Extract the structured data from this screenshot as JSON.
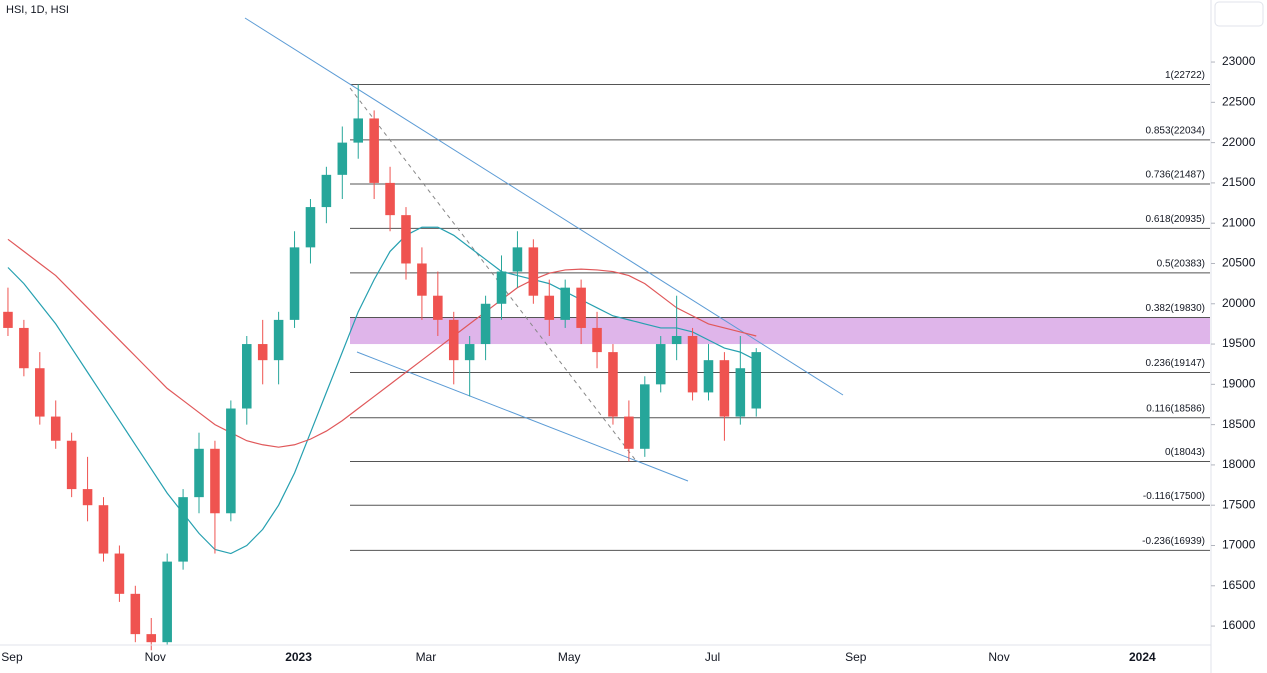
{
  "chart_data": {
    "type": "candlestick",
    "title": "HSI, 1D, HSI",
    "categories": [
      "Sep",
      null,
      null,
      null,
      null,
      null,
      null,
      null,
      null,
      "Nov",
      null,
      null,
      null,
      null,
      null,
      null,
      null,
      null,
      "2023",
      null,
      null,
      null,
      null,
      null,
      null,
      null,
      "Mar",
      null,
      null,
      null,
      null,
      null,
      null,
      null,
      null,
      "May",
      null,
      null,
      null,
      null,
      null,
      null,
      null,
      null,
      "Jul",
      null,
      null,
      null,
      null,
      null,
      null,
      null,
      null,
      "Sep",
      null,
      null,
      null,
      null,
      null,
      null,
      null,
      null,
      "Nov",
      null,
      null,
      null,
      null,
      null,
      null,
      null,
      null,
      "2024",
      null,
      null,
      null,
      null
    ],
    "open": [
      19900,
      19700,
      19200,
      18600,
      18300,
      17700,
      17500,
      16900,
      16400,
      15900,
      15800,
      16800,
      17600,
      18200,
      17400,
      18700,
      19500,
      19300,
      19800,
      20700,
      21200,
      21600,
      22000,
      22300,
      21500,
      21100,
      20500,
      20100,
      19800,
      19300,
      19500,
      20000,
      20400,
      20700,
      20100,
      19800,
      20200,
      19700,
      19400,
      18600,
      18200,
      19000,
      19500,
      19600,
      18900,
      19300,
      18600,
      18700,
      null,
      null,
      null,
      null,
      null,
      null,
      null,
      null,
      null,
      null,
      null,
      null,
      null,
      null,
      null,
      null,
      null,
      null,
      null,
      null,
      null,
      null,
      null,
      null,
      null,
      null,
      null,
      null
    ],
    "high": [
      20200,
      19800,
      19400,
      18800,
      18400,
      18100,
      17600,
      17000,
      16500,
      16100,
      16900,
      17700,
      18400,
      18300,
      18800,
      19600,
      19800,
      19900,
      20900,
      21300,
      21700,
      22200,
      22722,
      22400,
      21700,
      21200,
      20700,
      20400,
      19900,
      19600,
      20100,
      20600,
      20900,
      20800,
      20300,
      20300,
      20300,
      19900,
      19500,
      18800,
      19100,
      19600,
      20100,
      19700,
      19500,
      19400,
      19600,
      19450,
      null,
      null,
      null,
      null,
      null,
      null,
      null,
      null,
      null,
      null,
      null,
      null,
      null,
      null,
      null,
      null,
      null,
      null,
      null,
      null,
      null,
      null,
      null,
      null,
      null,
      null,
      null,
      null
    ],
    "low": [
      19600,
      19100,
      18500,
      18200,
      17600,
      17300,
      16800,
      16300,
      15800,
      15700,
      15760,
      16700,
      17400,
      16900,
      17300,
      18500,
      19000,
      19000,
      19700,
      20500,
      21000,
      21300,
      21800,
      21300,
      20900,
      20300,
      19800,
      19600,
      19000,
      18850,
      19300,
      19800,
      20200,
      20000,
      19600,
      19700,
      19500,
      19200,
      18500,
      18043,
      18100,
      18900,
      19300,
      18800,
      18800,
      18300,
      18500,
      18600,
      null,
      null,
      null,
      null,
      null,
      null,
      null,
      null,
      null,
      null,
      null,
      null,
      null,
      null,
      null,
      null,
      null,
      null,
      null,
      null,
      null,
      null,
      null,
      null,
      null,
      null,
      null,
      null
    ],
    "close": [
      19700,
      19200,
      18600,
      18300,
      17700,
      17500,
      16900,
      16400,
      15900,
      15800,
      16800,
      17600,
      18200,
      17400,
      18700,
      19500,
      19300,
      19800,
      20700,
      21200,
      21600,
      22000,
      22300,
      21500,
      21100,
      20500,
      20100,
      19800,
      19300,
      19500,
      20000,
      20400,
      20700,
      20100,
      19800,
      20200,
      19700,
      19400,
      18600,
      18200,
      19000,
      19500,
      19600,
      18900,
      19300,
      18600,
      19200,
      19400,
      null,
      null,
      null,
      null,
      null,
      null,
      null,
      null,
      null,
      null,
      null,
      null,
      null,
      null,
      null,
      null,
      null,
      null,
      null,
      null,
      null,
      null,
      null,
      null,
      null,
      null,
      null,
      null
    ],
    "up_color": "#26a69a",
    "down_color": "#ef5350",
    "ma": [
      {
        "color": "#26a0b0",
        "values": [
          20450,
          20250,
          20000,
          19750,
          19450,
          19150,
          18850,
          18550,
          18250,
          17950,
          17650,
          17400,
          17150,
          16950,
          16900,
          17000,
          17200,
          17500,
          17900,
          18400,
          18900,
          19400,
          19900,
          20300,
          20650,
          20850,
          20950,
          20950,
          20850,
          20700,
          20550,
          20400,
          20350,
          20300,
          20250,
          20150,
          20050,
          19950,
          19850,
          19800,
          19750,
          19700,
          19700,
          19650,
          19550,
          19450,
          19400,
          19300,
          null,
          null,
          null,
          null,
          null,
          null,
          null,
          null,
          null,
          null,
          null,
          null,
          null,
          null,
          null,
          null,
          null,
          null,
          null,
          null,
          null,
          null,
          null,
          null,
          null,
          null,
          null,
          null
        ]
      },
      {
        "color": "#e0585a",
        "values": [
          20800,
          20650,
          20500,
          20350,
          20150,
          19950,
          19750,
          19550,
          19350,
          19150,
          18950,
          18800,
          18650,
          18500,
          18400,
          18300,
          18250,
          18220,
          18250,
          18320,
          18420,
          18550,
          18700,
          18850,
          19000,
          19150,
          19300,
          19450,
          19600,
          19750,
          19900,
          20050,
          20200,
          20300,
          20380,
          20420,
          20430,
          20420,
          20400,
          20350,
          20250,
          20100,
          19950,
          19850,
          19750,
          19700,
          19650,
          19600,
          null,
          null,
          null,
          null,
          null,
          null,
          null,
          null,
          null,
          null,
          null,
          null,
          null,
          null,
          null,
          null,
          null,
          null,
          null,
          null,
          null,
          null,
          null,
          null,
          null,
          null,
          null,
          null
        ]
      }
    ],
    "zone": {
      "color": "#d9a8e6",
      "range": [
        19500,
        19830
      ]
    },
    "fib": [
      {
        "value": 22722,
        "label": "1(22722)"
      },
      {
        "value": 22034,
        "label": "0.853(22034)"
      },
      {
        "value": 21487,
        "label": "0.736(21487)"
      },
      {
        "value": 20935,
        "label": "0.618(20935)"
      },
      {
        "value": 20383,
        "label": "0.5(20383)"
      },
      {
        "value": 19830,
        "label": "0.382(19830)"
      },
      {
        "value": 19147,
        "label": "0.236(19147)"
      },
      {
        "value": 18586,
        "label": "0.116(18586)"
      },
      {
        "value": 18043,
        "label": "0(18043)"
      },
      {
        "value": 17500,
        "label": "-0.116(17500)"
      },
      {
        "value": 16939,
        "label": "-0.236(16939)"
      }
    ],
    "ylim": [
      15765,
      23770
    ],
    "yticks": [
      16000,
      16500,
      17000,
      17500,
      18000,
      18500,
      19000,
      19500,
      20000,
      20500,
      21000,
      21500,
      22000,
      22500,
      23000
    ]
  }
}
